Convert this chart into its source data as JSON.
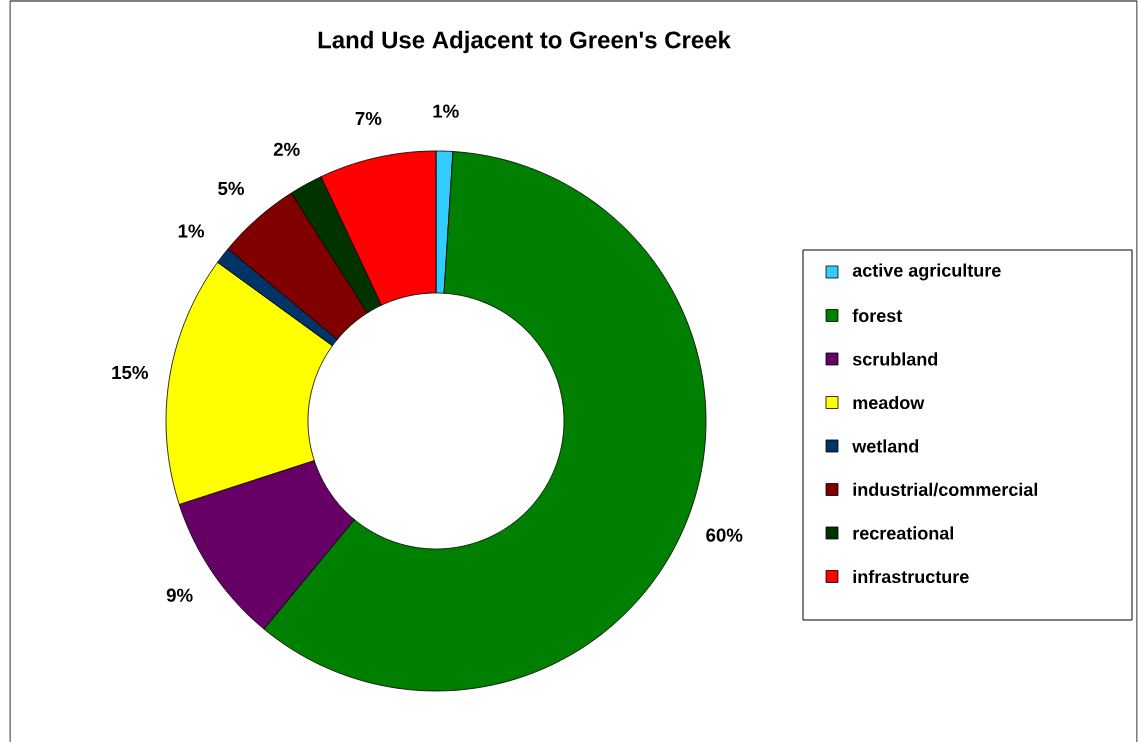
{
  "chart_data": {
    "type": "donut",
    "title": "Land Use Adjacent to Green's Creek",
    "categories": [
      "active agriculture",
      "forest",
      "scrubland",
      "meadow",
      "wetland",
      "industrial/commercial",
      "recreational",
      "infrastructure"
    ],
    "values": [
      1,
      60,
      9,
      15,
      1,
      5,
      2,
      7
    ],
    "colors": [
      "#33ccff",
      "#008000",
      "#660066",
      "#ffff00",
      "#003366",
      "#800000",
      "#003300",
      "#ff0000"
    ],
    "value_labels": [
      "1%",
      "60%",
      "9%",
      "15%",
      "1%",
      "5%",
      "2%",
      "7%"
    ],
    "legend": "right"
  }
}
